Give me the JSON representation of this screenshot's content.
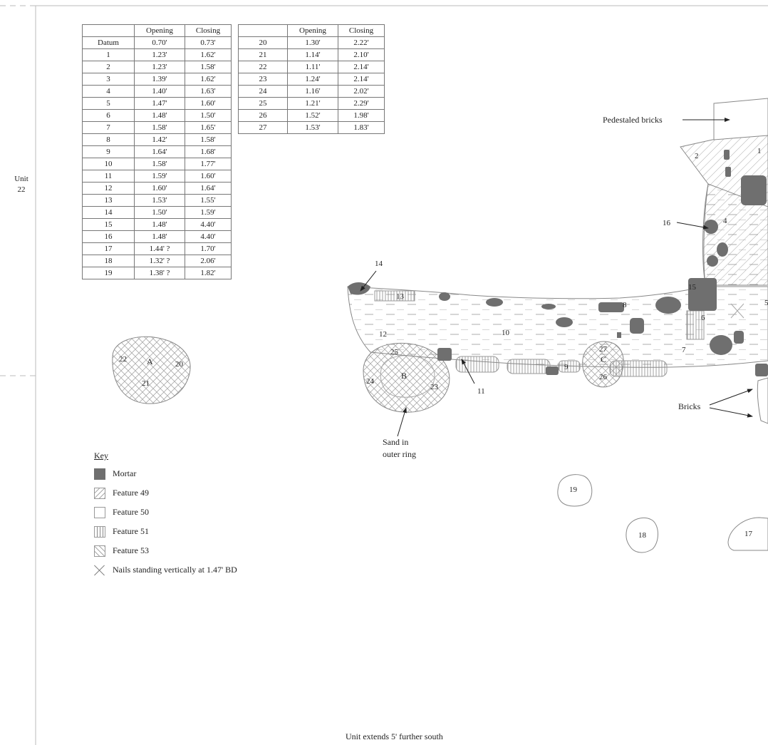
{
  "unit_label": "Unit 22",
  "footer_note": "Unit extends 5' further south",
  "table": {
    "headers": [
      "",
      "Opening",
      "Closing"
    ],
    "rows_left": [
      [
        "Datum",
        "0.70'",
        "0.73'"
      ],
      [
        "1",
        "1.23'",
        "1.62'"
      ],
      [
        "2",
        "1.23'",
        "1.58'"
      ],
      [
        "3",
        "1.39'",
        "1.62'"
      ],
      [
        "4",
        "1.40'",
        "1.63'"
      ],
      [
        "5",
        "1.47'",
        "1.60'"
      ],
      [
        "6",
        "1.48'",
        "1.50'"
      ],
      [
        "7",
        "1.58'",
        "1.65'"
      ],
      [
        "8",
        "1.42'",
        "1.58'"
      ],
      [
        "9",
        "1.64'",
        "1.68'"
      ],
      [
        "10",
        "1.58'",
        "1.77'"
      ],
      [
        "11",
        "1.59'",
        "1.60'"
      ],
      [
        "12",
        "1.60'",
        "1.64'"
      ],
      [
        "13",
        "1.53'",
        "1.55'"
      ],
      [
        "14",
        "1.50'",
        "1.59'"
      ],
      [
        "15",
        "1.48'",
        "4.40'"
      ],
      [
        "16",
        "1.48'",
        "4.40'"
      ],
      [
        "17",
        "1.44' ?",
        "1.70'"
      ],
      [
        "18",
        "1.32' ?",
        "2.06'"
      ],
      [
        "19",
        "1.38' ?",
        "1.82'"
      ]
    ],
    "rows_right": [
      [
        "20",
        "1.30'",
        "2.22'"
      ],
      [
        "21",
        "1.14'",
        "2.10'"
      ],
      [
        "22",
        "1.11'",
        "2.14'"
      ],
      [
        "23",
        "1.24'",
        "2.14'"
      ],
      [
        "24",
        "1.16'",
        "2.02'"
      ],
      [
        "25",
        "1.21'",
        "2.29'"
      ],
      [
        "26",
        "1.52'",
        "1.98'"
      ],
      [
        "27",
        "1.53'",
        "1.83'"
      ]
    ]
  },
  "key": {
    "title": "Key",
    "items": [
      {
        "swatch": "mortar",
        "label": "Mortar"
      },
      {
        "swatch": "f49",
        "label": "Feature 49"
      },
      {
        "swatch": "f50",
        "label": "Feature 50"
      },
      {
        "swatch": "f51",
        "label": "Feature 51"
      },
      {
        "swatch": "f53",
        "label": "Feature 53"
      },
      {
        "swatch": "nail",
        "label": "Nails standing vertically at 1.47' BD"
      }
    ]
  },
  "annotations": {
    "pedestaled_bricks": "Pedestaled bricks",
    "bricks": "Bricks",
    "sand_line1": "Sand in",
    "sand_line2": "outer ring"
  },
  "feature_letters": [
    "A",
    "B",
    "C"
  ],
  "point_labels": [
    "1",
    "2",
    "4",
    "5",
    "6",
    "7",
    "8",
    "9",
    "10",
    "11",
    "12",
    "13",
    "14",
    "15",
    "16",
    "17",
    "18",
    "19",
    "20",
    "21",
    "22",
    "23",
    "24",
    "25",
    "26",
    "27"
  ],
  "colors": {
    "mortar": "#6f6f6f",
    "line": "#888888",
    "hatch": "#aaaaaa"
  }
}
